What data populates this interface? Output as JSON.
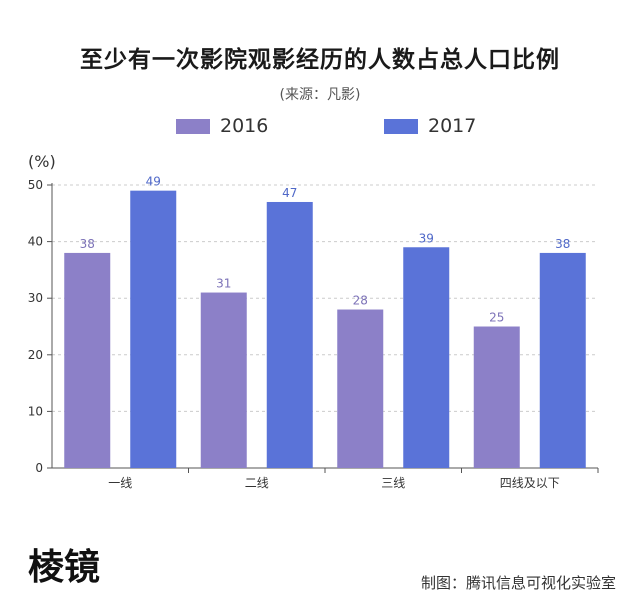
{
  "title": "至少有一次影院观影经历的人数占总人口比例",
  "subtitle": "(来源：凡影)",
  "unit_label": "(%)",
  "credit": "制图：腾讯信息可视化实验室",
  "logo_text": "棱镜",
  "colors": {
    "s2016": "#8c80c8",
    "s2017": "#5a73d8",
    "axis": "#555555",
    "grid": "#cccccc",
    "label2016": "#7d73b8",
    "label2017": "#4f68c8"
  },
  "chart_data": {
    "type": "bar",
    "categories": [
      "一线",
      "二线",
      "三线",
      "四线及以下"
    ],
    "series": [
      {
        "name": "2016",
        "values": [
          38,
          31,
          28,
          25
        ]
      },
      {
        "name": "2017",
        "values": [
          49,
          47,
          39,
          38
        ]
      }
    ],
    "ylim": [
      0,
      50
    ],
    "yticks": [
      0,
      10,
      20,
      30,
      40,
      50
    ],
    "grid": true,
    "legend_position": "top"
  }
}
